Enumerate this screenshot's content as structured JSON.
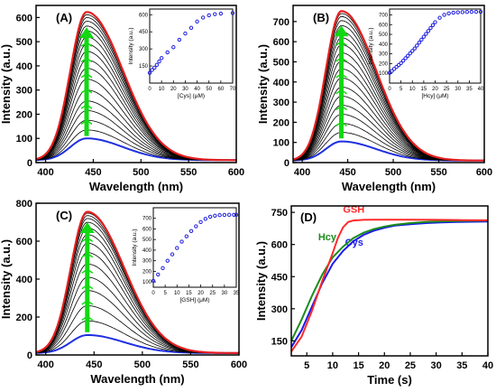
{
  "colors": {
    "curve": "#000000",
    "max_curve": "#e41f1f",
    "min_curve": "#1f2fe0",
    "arrow": "#12d812",
    "inset_marker": "#2020e0",
    "gsh": "#ff2a2a",
    "hcy": "#1c8c1c",
    "cys": "#1a1aee"
  },
  "chart_data": [
    {
      "type": "line",
      "panel_label": "(A)",
      "xlabel": "Wavelength (nm)",
      "ylabel": "Intensity (a.u.)",
      "xlim": [
        390,
        600
      ],
      "ylim": [
        0,
        650
      ],
      "xticks": [
        400,
        450,
        500,
        550,
        600
      ],
      "yticks": [
        0,
        100,
        200,
        300,
        400,
        500,
        600
      ],
      "peak_wavelength": 443,
      "peak_intensities": [
        100,
        135,
        175,
        215,
        255,
        300,
        345,
        390,
        425,
        460,
        490,
        520,
        545,
        565,
        585,
        600,
        612,
        623
      ],
      "baseline_intensity": 10,
      "arrow": {
        "from": 110,
        "to": 560
      },
      "inset": {
        "type": "scatter",
        "xlabel": "[Cys] (μM)",
        "ylabel": "Intensity (a.u.)",
        "xlim": [
          0,
          70
        ],
        "ylim": [
          0,
          650
        ],
        "xticks": [
          0,
          10,
          20,
          30,
          40,
          50,
          60,
          70
        ],
        "yticks": [
          150,
          300,
          450,
          600
        ],
        "x": [
          0,
          2,
          4,
          6,
          8,
          10,
          15,
          20,
          25,
          30,
          35,
          40,
          45,
          50,
          55,
          60,
          70
        ],
        "y": [
          90,
          115,
          135,
          160,
          190,
          220,
          270,
          315,
          380,
          435,
          485,
          540,
          575,
          595,
          605,
          610,
          615
        ]
      }
    },
    {
      "type": "line",
      "panel_label": "(B)",
      "xlabel": "Wavelength (nm)",
      "ylabel": "Intensity (a.u.)",
      "xlim": [
        390,
        600
      ],
      "ylim": [
        0,
        780
      ],
      "xticks": [
        400,
        450,
        500,
        550,
        600
      ],
      "yticks": [
        0,
        100,
        200,
        300,
        400,
        500,
        600,
        700
      ],
      "peak_wavelength": 443,
      "peak_intensities": [
        105,
        150,
        195,
        240,
        285,
        330,
        375,
        420,
        465,
        505,
        545,
        585,
        620,
        650,
        680,
        705,
        725,
        740,
        752
      ],
      "baseline_intensity": 10,
      "arrow": {
        "from": 120,
        "to": 680
      },
      "inset": {
        "type": "scatter",
        "xlabel": "[Hcy] (μM)",
        "ylabel": "Intensity (a.u.)",
        "xlim": [
          0,
          40
        ],
        "ylim": [
          0,
          760
        ],
        "xticks": [
          0,
          5,
          10,
          15,
          20,
          25,
          30,
          35,
          40
        ],
        "yticks": [
          100,
          200,
          300,
          400,
          500,
          600,
          700
        ],
        "x": [
          0,
          1,
          2,
          3,
          4,
          5,
          6,
          7,
          8,
          9,
          10,
          11,
          12,
          13,
          14,
          15,
          16,
          17,
          18,
          19,
          20,
          22,
          24,
          26,
          28,
          30,
          32,
          34,
          36,
          38,
          40
        ],
        "y": [
          105,
          125,
          145,
          165,
          185,
          205,
          230,
          255,
          280,
          305,
          330,
          355,
          385,
          415,
          445,
          475,
          505,
          535,
          565,
          595,
          625,
          670,
          700,
          715,
          722,
          726,
          728,
          730,
          731,
          731,
          732
        ]
      }
    },
    {
      "type": "line",
      "panel_label": "(C)",
      "xlabel": "Wavelength (nm)",
      "ylabel": "Intensity (a.u.)",
      "xlim": [
        390,
        600
      ],
      "ylim": [
        0,
        800
      ],
      "xticks": [
        400,
        450,
        500,
        550,
        600
      ],
      "yticks": [
        0,
        200,
        400,
        600,
        800
      ],
      "peak_wavelength": 443,
      "peak_intensities": [
        105,
        180,
        260,
        340,
        410,
        480,
        540,
        590,
        635,
        670,
        700,
        720,
        735,
        748,
        755
      ],
      "baseline_intensity": 10,
      "arrow": {
        "from": 120,
        "to": 700
      },
      "inset": {
        "type": "scatter",
        "xlabel": "[GSH] (μM)",
        "ylabel": "Intensity (a.u.)",
        "xlim": [
          0,
          35
        ],
        "ylim": [
          50,
          800
        ],
        "xticks": [
          0,
          5,
          10,
          15,
          20,
          25,
          30,
          35
        ],
        "yticks": [
          100,
          200,
          300,
          400,
          500,
          600,
          700
        ],
        "x": [
          0,
          2,
          4,
          6,
          8,
          10,
          12,
          14,
          16,
          18,
          20,
          22,
          24,
          26,
          28,
          30,
          32,
          34,
          35
        ],
        "y": [
          110,
          170,
          230,
          300,
          360,
          420,
          480,
          530,
          580,
          625,
          665,
          695,
          715,
          725,
          730,
          732,
          733,
          733,
          733
        ]
      }
    },
    {
      "type": "line",
      "panel_label": "(D)",
      "xlabel": "Time (s)",
      "ylabel": "Intensity (a.u.)",
      "xlim": [
        2,
        40
      ],
      "ylim": [
        80,
        780
      ],
      "xticks": [
        5,
        10,
        15,
        20,
        25,
        30,
        35,
        40
      ],
      "yticks": [
        150,
        300,
        450,
        600,
        750
      ],
      "series": [
        {
          "name": "Cys",
          "x": [
            2,
            4,
            6,
            8,
            10,
            12,
            14,
            16,
            18,
            20,
            22,
            25,
            28,
            31,
            34,
            37,
            40
          ],
          "y": [
            120,
            200,
            310,
            420,
            510,
            570,
            615,
            645,
            665,
            678,
            688,
            695,
            700,
            703,
            705,
            706,
            707
          ]
        },
        {
          "name": "Hcy",
          "x": [
            2,
            4,
            6,
            8,
            10,
            12,
            14,
            16,
            18,
            20,
            22,
            25,
            28,
            31,
            34,
            37,
            40
          ],
          "y": [
            150,
            250,
            360,
            460,
            540,
            590,
            630,
            655,
            672,
            684,
            692,
            700,
            705,
            708,
            710,
            711,
            712
          ]
        },
        {
          "name": "GSH",
          "x": [
            2,
            4,
            6,
            8,
            10,
            11,
            12,
            13,
            14,
            16,
            18,
            20,
            25,
            30,
            35,
            40
          ],
          "y": [
            100,
            170,
            290,
            430,
            560,
            630,
            680,
            705,
            712,
            715,
            716,
            716,
            716,
            715,
            714,
            713
          ]
        }
      ]
    }
  ]
}
